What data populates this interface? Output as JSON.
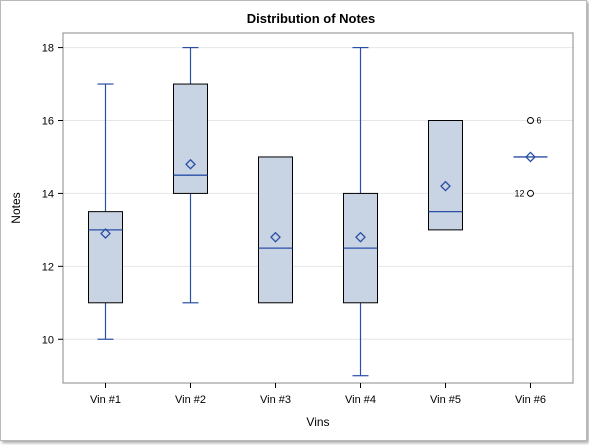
{
  "chart_data": {
    "type": "box",
    "title": "Distribution of Notes",
    "xlabel": "Vins",
    "ylabel": "Notes",
    "ylim": [
      8.8,
      18.4
    ],
    "yticks": [
      10,
      12,
      14,
      16,
      18
    ],
    "grid": true,
    "categories": [
      "Vin #1",
      "Vin #2",
      "Vin #3",
      "Vin #4",
      "Vin #5",
      "Vin #6"
    ],
    "boxes": [
      {
        "min": 10,
        "q1": 11,
        "median": 13,
        "q3": 13.5,
        "max": 17,
        "mean": 12.9,
        "outliers": []
      },
      {
        "min": 11,
        "q1": 14,
        "median": 14.5,
        "q3": 17,
        "max": 18,
        "mean": 14.8,
        "outliers": []
      },
      {
        "min": 11,
        "q1": 11,
        "median": 12.5,
        "q3": 15,
        "max": 15,
        "mean": 12.8,
        "outliers": []
      },
      {
        "min": 9,
        "q1": 11,
        "median": 12.5,
        "q3": 14,
        "max": 18,
        "mean": 12.8,
        "outliers": []
      },
      {
        "min": 13,
        "q1": 13,
        "median": 13.5,
        "q3": 16,
        "max": 16,
        "mean": 14.2,
        "outliers": []
      },
      {
        "min": 15,
        "q1": 15,
        "median": 15,
        "q3": 15,
        "max": 15,
        "mean": 15,
        "outliers": [
          {
            "value": 16,
            "label": "6"
          },
          {
            "value": 14,
            "label": "12"
          }
        ]
      }
    ],
    "colors": {
      "box_fill": "#c8d3e4",
      "box_stroke": "#000000",
      "whisker": "#2a4fa5",
      "median": "#2a4fa5",
      "mean_marker": "#2a4fa5",
      "grid": "#e6e6e6"
    }
  }
}
